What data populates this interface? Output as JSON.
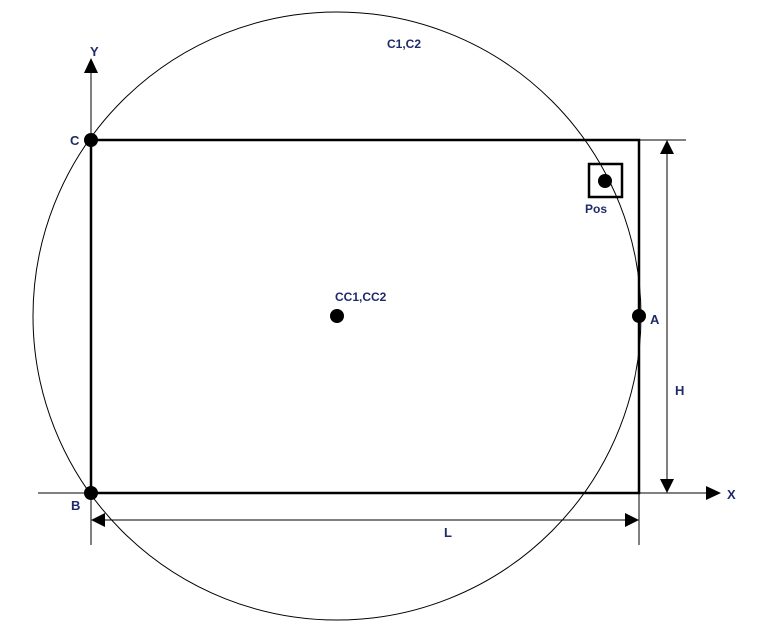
{
  "labels": {
    "y_axis": "Y",
    "x_axis": "X",
    "circle": "C1,C2",
    "point_c": "C",
    "point_b": "B",
    "point_a": "A",
    "center": "CC1,CC2",
    "pos": "Pos",
    "height": "H",
    "length": "L"
  },
  "colors": {
    "line": "#000000",
    "label": "#1f2a6b",
    "background": "#ffffff"
  }
}
